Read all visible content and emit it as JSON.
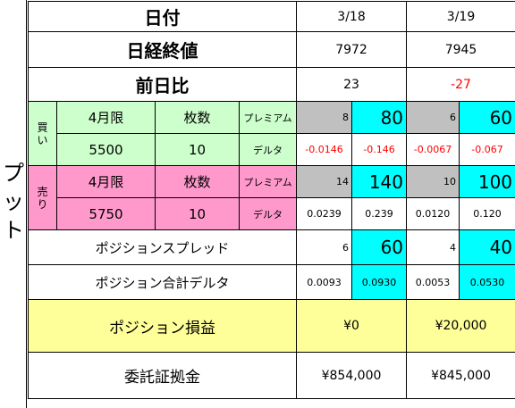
{
  "side_label": "プット",
  "dates": [
    "3/18",
    "3/19"
  ],
  "header": {
    "date_label": "日付",
    "nikkei_label": "日経終値",
    "change_label": "前日比"
  },
  "nikkei_close": [
    "7972",
    "7945"
  ],
  "day_change": [
    "23",
    "-27"
  ],
  "buy": {
    "label": "買い",
    "month": "4月限",
    "qty_label": "枚数",
    "premium_label": "プレミアム",
    "strike": "5500",
    "qty": "10",
    "delta_label": "デルタ",
    "premium": [
      {
        "unit": "8",
        "total": "80"
      },
      {
        "unit": "6",
        "total": "60"
      }
    ],
    "delta": [
      {
        "unit": "-0.0146",
        "total": "-0.146"
      },
      {
        "unit": "-0.0067",
        "total": "-0.067"
      }
    ]
  },
  "sell": {
    "label": "売り",
    "month": "4月限",
    "qty_label": "枚数",
    "premium_label": "プレミアム",
    "strike": "5750",
    "qty": "10",
    "delta_label": "デルタ",
    "premium": [
      {
        "unit": "14",
        "total": "140"
      },
      {
        "unit": "10",
        "total": "100"
      }
    ],
    "delta": [
      {
        "unit": "0.0239",
        "total": "0.239"
      },
      {
        "unit": "0.0120",
        "total": "0.120"
      }
    ]
  },
  "spread": {
    "label": "ポジションスプレッド",
    "values": [
      {
        "unit": "6",
        "total": "60"
      },
      {
        "unit": "4",
        "total": "40"
      }
    ]
  },
  "pos_delta": {
    "label": "ポジション合計デルタ",
    "values": [
      {
        "unit": "0.0093",
        "total": "0.0930"
      },
      {
        "unit": "0.0053",
        "total": "0.0530"
      }
    ]
  },
  "pnl": {
    "label": "ポジション損益",
    "values": [
      "¥0",
      "¥20,000"
    ]
  },
  "margin": {
    "label": "委託証拠金",
    "values": [
      "¥854,000",
      "¥845,000"
    ]
  },
  "colors": {
    "buy_bg": "#ccffcc",
    "sell_bg": "#ff99cc",
    "unit_bg": "#c0c0c0",
    "total_bg": "#00ffff",
    "pnl_bg": "#ffff99",
    "negative_text": "#ff0000"
  }
}
